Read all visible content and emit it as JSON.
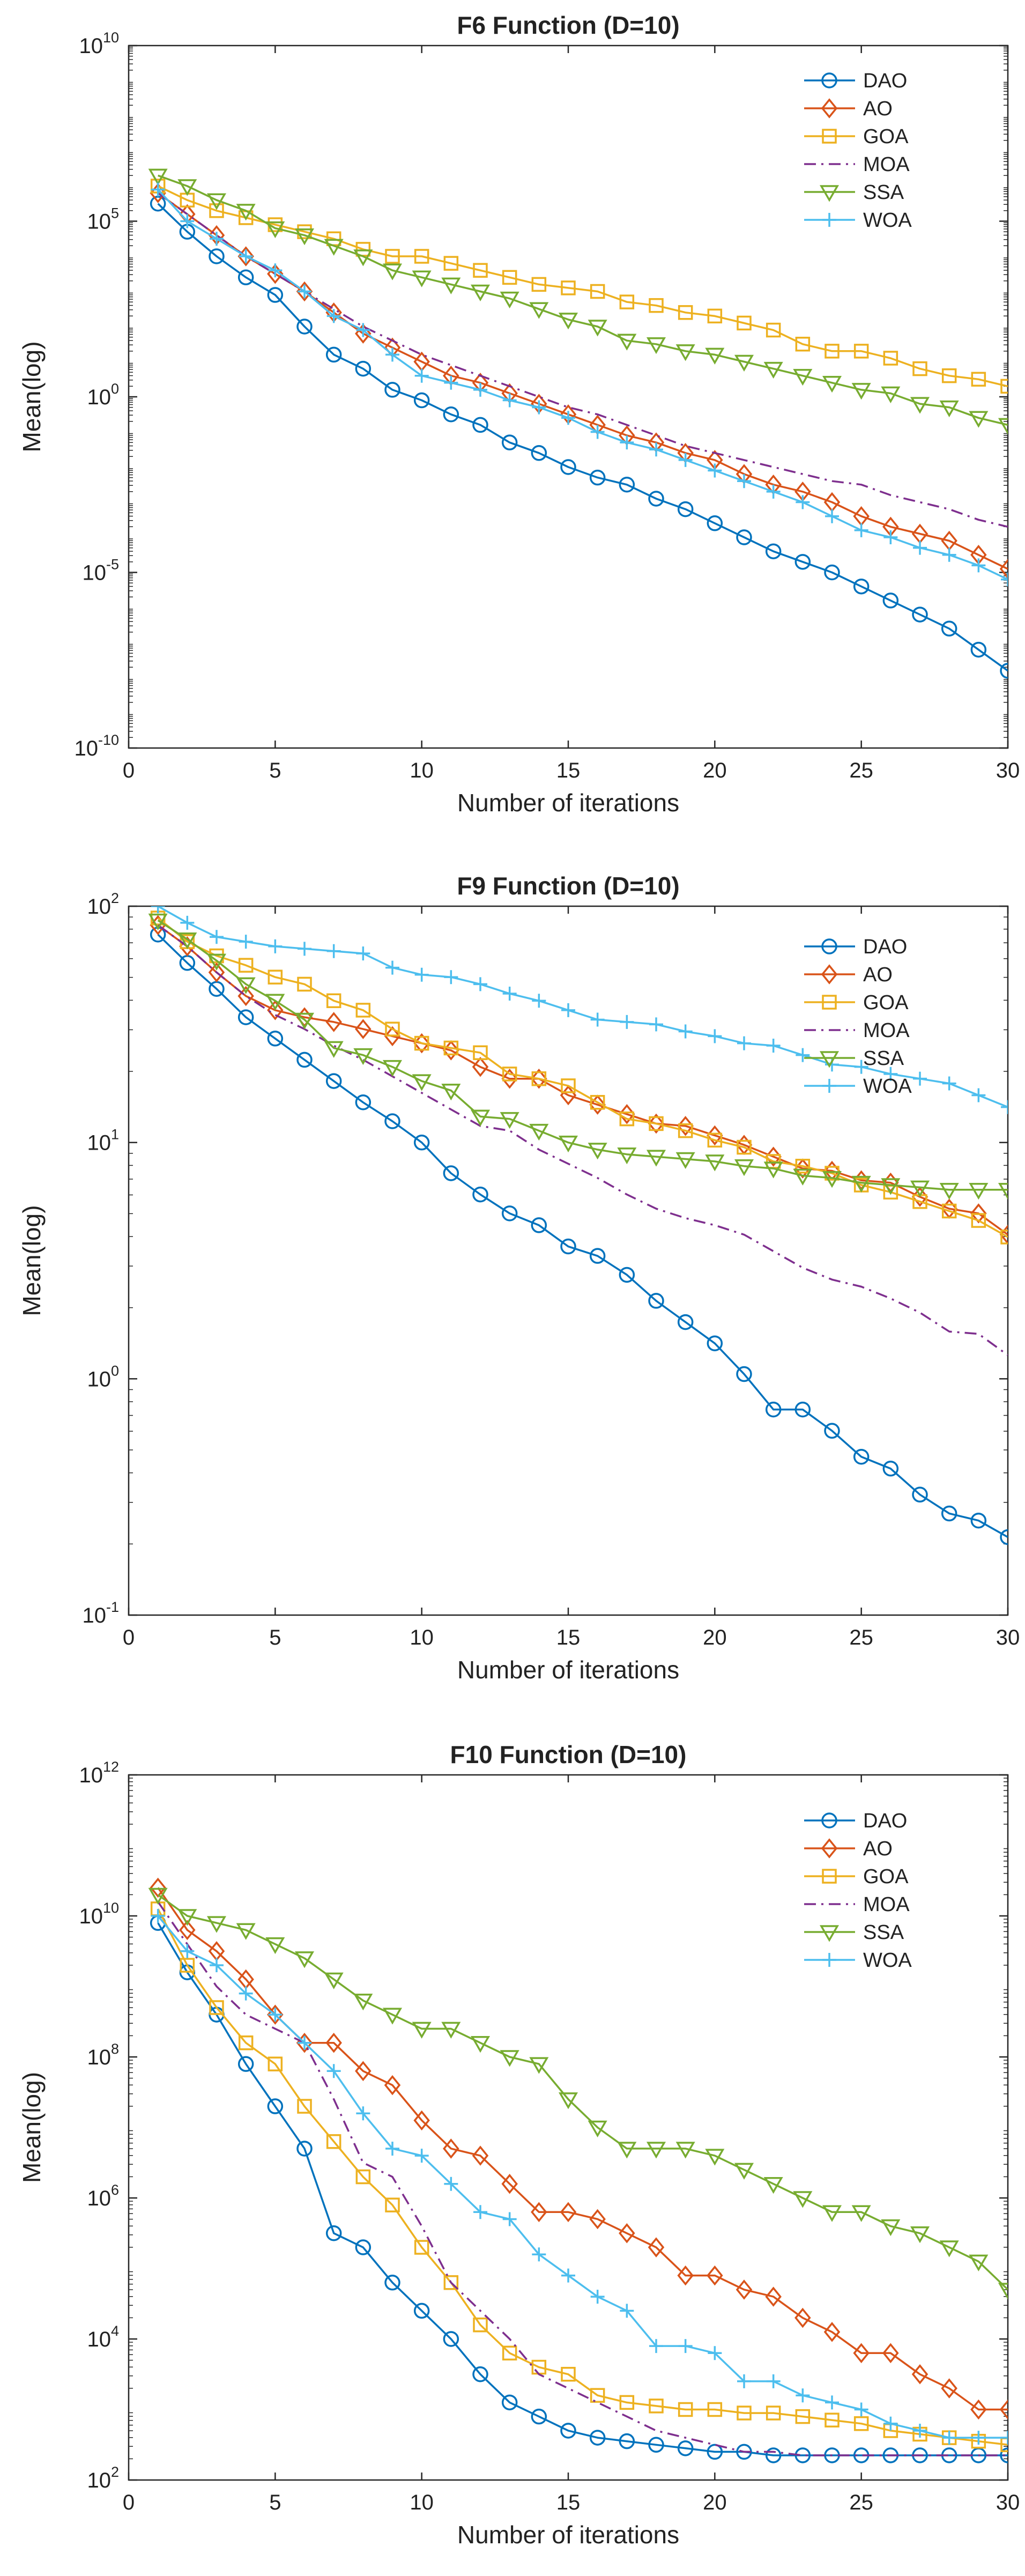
{
  "colors": {
    "DAO": "#0072BD",
    "AO": "#D95319",
    "GOA": "#EDB120",
    "MOA": "#7E2F8E",
    "SSA": "#77AC30",
    "WOA": "#4DBEEE"
  },
  "chart_data": [
    {
      "type": "line",
      "title": "F6 Function (D=10)",
      "xlabel": "Number of iterations",
      "ylabel": "Mean(log)",
      "xlim": [
        0,
        30
      ],
      "yscale": "log",
      "ylim_exp": [
        -10,
        10
      ],
      "yticks_exp": [
        -10,
        -5,
        0,
        5,
        10
      ],
      "xticks": [
        0,
        5,
        10,
        15,
        20,
        25,
        30
      ],
      "legend_position": "top-right",
      "x": [
        1,
        2,
        3,
        4,
        5,
        6,
        7,
        8,
        9,
        10,
        11,
        12,
        13,
        14,
        15,
        16,
        17,
        18,
        19,
        20,
        21,
        22,
        23,
        24,
        25,
        26,
        27,
        28,
        29,
        30
      ],
      "series": [
        {
          "name": "DAO",
          "marker": "circle",
          "linestyle": "solid",
          "log10": [
            5.5,
            4.7,
            4.0,
            3.4,
            2.9,
            2.0,
            1.2,
            0.8,
            0.2,
            -0.1,
            -0.5,
            -0.8,
            -1.3,
            -1.6,
            -2.0,
            -2.3,
            -2.5,
            -2.9,
            -3.2,
            -3.6,
            -4.0,
            -4.4,
            -4.7,
            -5.0,
            -5.4,
            -5.8,
            -6.2,
            -6.6,
            -7.2,
            -7.8
          ]
        },
        {
          "name": "AO",
          "marker": "diamond",
          "linestyle": "solid",
          "log10": [
            5.8,
            5.2,
            4.6,
            4.0,
            3.5,
            3.0,
            2.4,
            1.8,
            1.4,
            1.0,
            0.6,
            0.4,
            0.1,
            -0.2,
            -0.5,
            -0.8,
            -1.1,
            -1.3,
            -1.6,
            -1.8,
            -2.2,
            -2.5,
            -2.7,
            -3.0,
            -3.4,
            -3.7,
            -3.9,
            -4.1,
            -4.5,
            -4.9
          ]
        },
        {
          "name": "GOA",
          "marker": "square",
          "linestyle": "solid",
          "log10": [
            6.0,
            5.6,
            5.3,
            5.1,
            4.9,
            4.7,
            4.5,
            4.2,
            4.0,
            4.0,
            3.8,
            3.6,
            3.4,
            3.2,
            3.1,
            3.0,
            2.7,
            2.6,
            2.4,
            2.3,
            2.1,
            1.9,
            1.5,
            1.3,
            1.3,
            1.1,
            0.8,
            0.6,
            0.5,
            0.3
          ]
        },
        {
          "name": "MOA",
          "marker": "none",
          "linestyle": "dashdot",
          "log10": [
            5.8,
            5.2,
            4.6,
            4.0,
            3.5,
            3.0,
            2.5,
            2.0,
            1.6,
            1.2,
            0.9,
            0.6,
            0.3,
            0.0,
            -0.3,
            -0.5,
            -0.8,
            -1.1,
            -1.4,
            -1.6,
            -1.8,
            -2.0,
            -2.2,
            -2.4,
            -2.5,
            -2.8,
            -3.0,
            -3.2,
            -3.5,
            -3.7
          ]
        },
        {
          "name": "SSA",
          "marker": "triangle-down",
          "linestyle": "solid",
          "log10": [
            6.3,
            6.0,
            5.6,
            5.3,
            4.8,
            4.6,
            4.3,
            4.0,
            3.6,
            3.4,
            3.2,
            3.0,
            2.8,
            2.5,
            2.2,
            2.0,
            1.6,
            1.5,
            1.3,
            1.2,
            1.0,
            0.8,
            0.6,
            0.4,
            0.2,
            0.1,
            -0.2,
            -0.3,
            -0.6,
            -0.8
          ]
        },
        {
          "name": "WOA",
          "marker": "plus",
          "linestyle": "solid",
          "log10": [
            5.9,
            5.0,
            4.5,
            4.0,
            3.6,
            3.0,
            2.3,
            1.9,
            1.2,
            0.6,
            0.4,
            0.2,
            -0.1,
            -0.3,
            -0.6,
            -1.0,
            -1.3,
            -1.5,
            -1.8,
            -2.1,
            -2.4,
            -2.7,
            -3.0,
            -3.4,
            -3.8,
            -4.0,
            -4.3,
            -4.5,
            -4.8,
            -5.2
          ]
        }
      ]
    },
    {
      "type": "line",
      "title": "F9 Function (D=10)",
      "xlabel": "Number of iterations",
      "ylabel": "Mean(log)",
      "xlim": [
        0,
        30
      ],
      "yscale": "log",
      "ylim_exp": [
        -1,
        2
      ],
      "yticks_exp": [
        -1,
        0,
        1,
        2
      ],
      "xticks": [
        0,
        5,
        10,
        15,
        20,
        25,
        30
      ],
      "legend_position": "top-right",
      "x": [
        1,
        2,
        3,
        4,
        5,
        6,
        7,
        8,
        9,
        10,
        11,
        12,
        13,
        14,
        15,
        16,
        17,
        18,
        19,
        20,
        21,
        22,
        23,
        24,
        25,
        26,
        27,
        28,
        29,
        30
      ],
      "series": [
        {
          "name": "DAO",
          "marker": "circle",
          "linestyle": "solid",
          "log10": [
            1.88,
            1.76,
            1.65,
            1.53,
            1.44,
            1.35,
            1.26,
            1.17,
            1.09,
            1.0,
            0.87,
            0.78,
            0.7,
            0.65,
            0.56,
            0.52,
            0.44,
            0.33,
            0.24,
            0.15,
            0.02,
            -0.13,
            -0.13,
            -0.22,
            -0.33,
            -0.38,
            -0.49,
            -0.57,
            -0.6,
            -0.67
          ]
        },
        {
          "name": "AO",
          "marker": "diamond",
          "linestyle": "solid",
          "log10": [
            1.92,
            1.83,
            1.72,
            1.62,
            1.56,
            1.53,
            1.51,
            1.48,
            1.45,
            1.42,
            1.39,
            1.32,
            1.27,
            1.27,
            1.2,
            1.16,
            1.12,
            1.08,
            1.07,
            1.03,
            0.99,
            0.94,
            0.89,
            0.88,
            0.84,
            0.83,
            0.77,
            0.72,
            0.7,
            0.61
          ]
        },
        {
          "name": "GOA",
          "marker": "square",
          "linestyle": "solid",
          "log10": [
            1.95,
            1.85,
            1.79,
            1.75,
            1.7,
            1.67,
            1.6,
            1.56,
            1.48,
            1.42,
            1.4,
            1.38,
            1.29,
            1.27,
            1.24,
            1.17,
            1.1,
            1.08,
            1.05,
            1.01,
            0.98,
            0.92,
            0.9,
            0.87,
            0.82,
            0.79,
            0.75,
            0.71,
            0.67,
            0.6
          ]
        },
        {
          "name": "MOA",
          "marker": "none",
          "linestyle": "dashdot",
          "log10": [
            1.92,
            1.83,
            1.72,
            1.62,
            1.54,
            1.48,
            1.41,
            1.35,
            1.28,
            1.21,
            1.14,
            1.07,
            1.05,
            0.97,
            0.91,
            0.85,
            0.78,
            0.72,
            0.68,
            0.65,
            0.61,
            0.54,
            0.47,
            0.42,
            0.39,
            0.34,
            0.28,
            0.2,
            0.19,
            0.1
          ]
        },
        {
          "name": "SSA",
          "marker": "triangle-down",
          "linestyle": "solid",
          "log10": [
            1.94,
            1.86,
            1.77,
            1.67,
            1.6,
            1.52,
            1.4,
            1.37,
            1.32,
            1.26,
            1.22,
            1.11,
            1.1,
            1.05,
            1.0,
            0.97,
            0.95,
            0.94,
            0.93,
            0.92,
            0.9,
            0.89,
            0.86,
            0.85,
            0.83,
            0.82,
            0.81,
            0.8,
            0.8,
            0.8
          ]
        },
        {
          "name": "WOA",
          "marker": "plus",
          "linestyle": "solid",
          "log10": [
            2.0,
            1.93,
            1.87,
            1.85,
            1.83,
            1.82,
            1.81,
            1.8,
            1.74,
            1.71,
            1.7,
            1.67,
            1.63,
            1.6,
            1.56,
            1.52,
            1.51,
            1.5,
            1.47,
            1.45,
            1.42,
            1.41,
            1.37,
            1.33,
            1.32,
            1.29,
            1.27,
            1.25,
            1.2,
            1.15
          ]
        }
      ]
    },
    {
      "type": "line",
      "title": "F10 Function (D=10)",
      "xlabel": "Number of iterations",
      "ylabel": "Mean(log)",
      "xlim": [
        0,
        30
      ],
      "yscale": "log",
      "ylim_exp": [
        2,
        12
      ],
      "yticks_exp": [
        2,
        4,
        6,
        8,
        10,
        12
      ],
      "xticks": [
        0,
        5,
        10,
        15,
        20,
        25,
        30
      ],
      "legend_position": "top-right",
      "x": [
        1,
        2,
        3,
        4,
        5,
        6,
        7,
        8,
        9,
        10,
        11,
        12,
        13,
        14,
        15,
        16,
        17,
        18,
        19,
        20,
        21,
        22,
        23,
        24,
        25,
        26,
        27,
        28,
        29,
        30
      ],
      "series": [
        {
          "name": "DAO",
          "marker": "circle",
          "linestyle": "solid",
          "log10": [
            9.9,
            9.2,
            8.6,
            7.9,
            7.3,
            6.7,
            5.5,
            5.3,
            4.8,
            4.4,
            4.0,
            3.5,
            3.1,
            2.9,
            2.7,
            2.6,
            2.55,
            2.5,
            2.45,
            2.4,
            2.4,
            2.35,
            2.35,
            2.35,
            2.35,
            2.35,
            2.35,
            2.35,
            2.35,
            2.35
          ]
        },
        {
          "name": "AO",
          "marker": "diamond",
          "linestyle": "solid",
          "log10": [
            10.4,
            9.8,
            9.5,
            9.1,
            8.6,
            8.2,
            8.2,
            7.8,
            7.6,
            7.1,
            6.7,
            6.6,
            6.2,
            5.8,
            5.8,
            5.7,
            5.5,
            5.3,
            4.9,
            4.9,
            4.7,
            4.6,
            4.3,
            4.1,
            3.8,
            3.8,
            3.5,
            3.3,
            3.0,
            3.0
          ]
        },
        {
          "name": "GOA",
          "marker": "square",
          "linestyle": "solid",
          "log10": [
            10.1,
            9.3,
            8.7,
            8.2,
            7.9,
            7.3,
            6.8,
            6.3,
            5.9,
            5.3,
            4.8,
            4.2,
            3.8,
            3.6,
            3.5,
            3.2,
            3.1,
            3.05,
            3.0,
            3.0,
            2.95,
            2.95,
            2.9,
            2.85,
            2.8,
            2.7,
            2.65,
            2.6,
            2.55,
            2.5
          ]
        },
        {
          "name": "MOA",
          "marker": "none",
          "linestyle": "dashdot",
          "log10": [
            10.2,
            9.6,
            9.0,
            8.6,
            8.4,
            8.2,
            7.4,
            6.5,
            6.3,
            5.6,
            4.8,
            4.4,
            4.0,
            3.5,
            3.3,
            3.1,
            2.9,
            2.7,
            2.6,
            2.5,
            2.4,
            2.4,
            2.35,
            2.35,
            2.35,
            2.35,
            2.35,
            2.35,
            2.35,
            2.35
          ]
        },
        {
          "name": "SSA",
          "marker": "triangle-down",
          "linestyle": "solid",
          "log10": [
            10.3,
            10.0,
            9.9,
            9.8,
            9.6,
            9.4,
            9.1,
            8.8,
            8.6,
            8.4,
            8.4,
            8.2,
            8.0,
            7.9,
            7.4,
            7.0,
            6.7,
            6.7,
            6.7,
            6.6,
            6.4,
            6.2,
            6.0,
            5.8,
            5.8,
            5.6,
            5.5,
            5.3,
            5.1,
            4.7
          ]
        },
        {
          "name": "WOA",
          "marker": "plus",
          "linestyle": "solid",
          "log10": [
            10.0,
            9.5,
            9.3,
            8.9,
            8.6,
            8.2,
            7.8,
            7.2,
            6.7,
            6.6,
            6.2,
            5.8,
            5.7,
            5.2,
            4.9,
            4.6,
            4.4,
            3.9,
            3.9,
            3.8,
            3.4,
            3.4,
            3.2,
            3.1,
            3.0,
            2.8,
            2.7,
            2.6,
            2.6,
            2.6
          ]
        }
      ]
    }
  ]
}
